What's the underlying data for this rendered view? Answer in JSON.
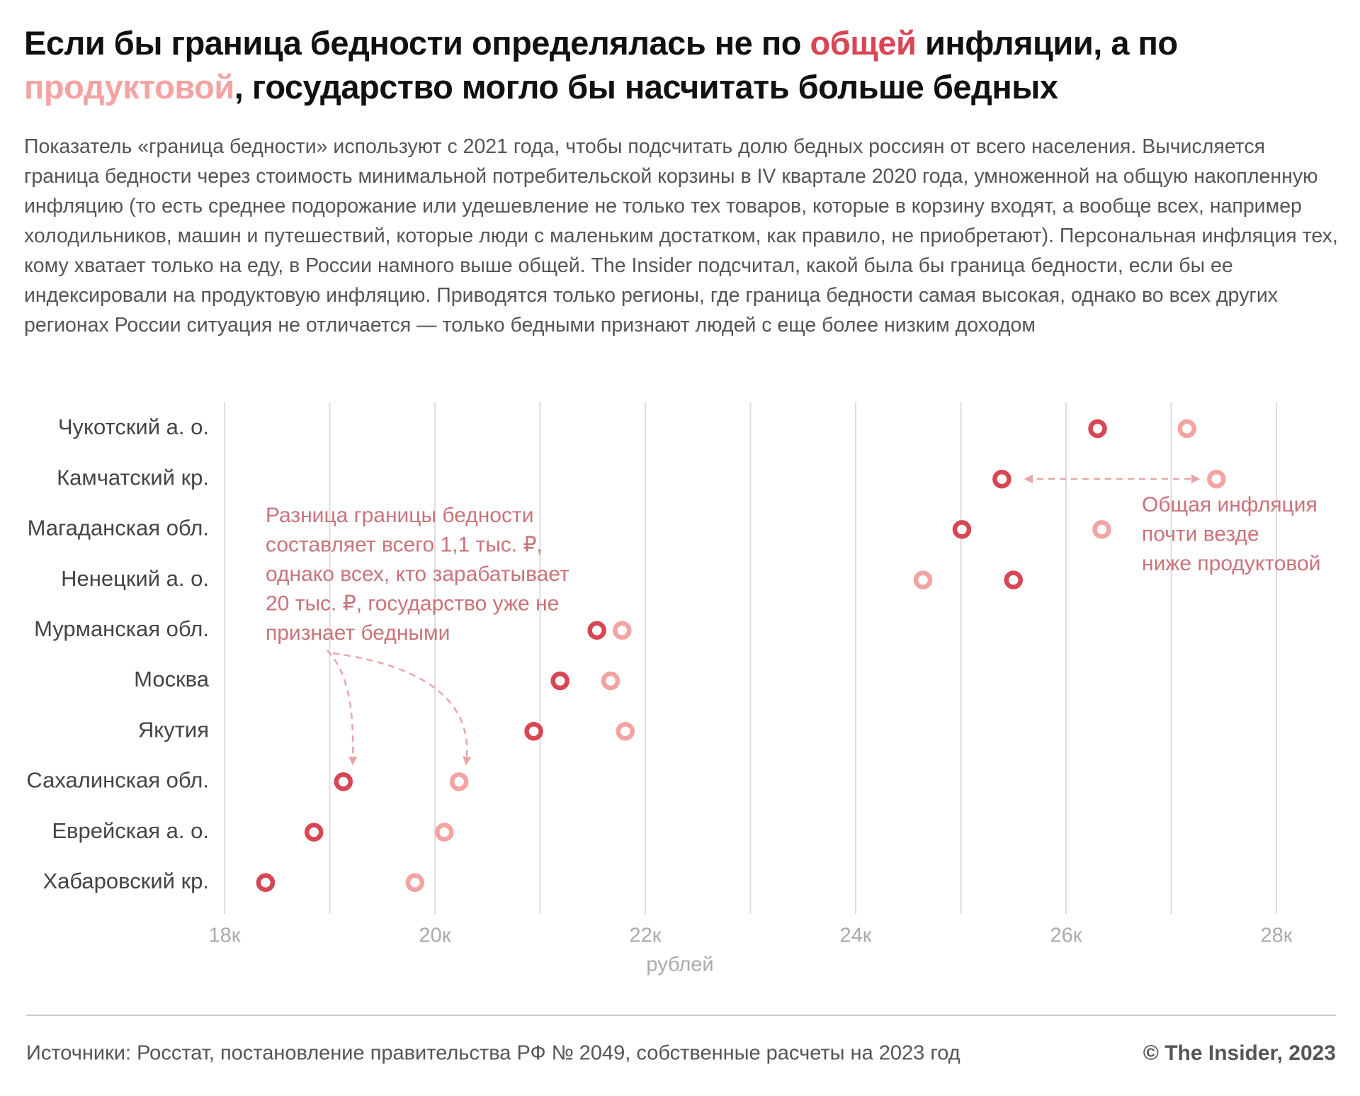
{
  "chart_data": {
    "type": "dot",
    "title_parts": [
      "Если бы граница бедности определялась не по ",
      " инфляции, а по ",
      ", государство могло бы насчитать больше бедных"
    ],
    "subtitle": "Показатель «граница бедности» используют с 2021 года, чтобы подсчитать долю бедных россиян от всего населения. Вычисляется граница бедности через стоимость минимальной потребительской корзины в IV квартале 2020 года, умноженной на общую накопленную инфляцию (то есть среднее подорожание или удешевление не только тех товаров, которые в корзину входят, а вообще всех, например холодильников, машин и путешествий, которые люди с маленьким достатком, как правило, не приобретают). Персональная инфляция тех, кому хватает только на еду, в России намного выше общей. The Insider подсчитал, какой была бы граница бедности, если бы ее индексировали на продуктовую инфляцию. Приводятся только регионы, где граница бедности самая высокая, однако во всех других регионах России ситуация не отличается — только бедными признают людей с еще более низким доходом",
    "categories": [
      "Чукотский а. о.",
      "Камчатский кр.",
      "Магаданская обл.",
      "Ненецкий а. о.",
      "Мурманская обл.",
      "Москва",
      "Якутия",
      "Сахалинская обл.",
      "Еврейская а. о.",
      "Хабаровский кр."
    ],
    "series": [
      {
        "name": "общей",
        "color": "#d84654",
        "values": [
          26300,
          25390,
          25010,
          25500,
          21540,
          21190,
          20940,
          19130,
          18850,
          18390
        ]
      },
      {
        "name": "продуктовой",
        "color": "#f4a3a3",
        "values": [
          27150,
          27430,
          26340,
          24640,
          21780,
          21670,
          21810,
          20230,
          20090,
          19810
        ]
      }
    ],
    "xlim": [
      18000,
      28000
    ],
    "xticks": [
      {
        "value": 18000,
        "label": "18к"
      },
      {
        "value": 20000,
        "label": "20к"
      },
      {
        "value": 22000,
        "label": "22к"
      },
      {
        "value": 24000,
        "label": "24к"
      },
      {
        "value": 26000,
        "label": "26к"
      },
      {
        "value": 28000,
        "label": "28к"
      }
    ],
    "xminorticks": [
      19000,
      21000,
      23000,
      25000,
      27000
    ],
    "grid": true,
    "x_label": "рублей",
    "annotations": [
      {
        "lines": [
          "Разница границы бедности",
          "составляет всего 1,1 тыс. ₽,",
          "однако всех, кто зарабатывает",
          "20 тыс. ₽, государство уже не",
          "признает бедными"
        ]
      },
      {
        "lines": [
          "Общая инфляция",
          "почти везде",
          "ниже продуктовой"
        ]
      }
    ],
    "source": "Источники: Росстат, постановление правительства РФ № 2049, собственные расчеты на 2023 год",
    "copyright": "© The Insider, 2023"
  }
}
